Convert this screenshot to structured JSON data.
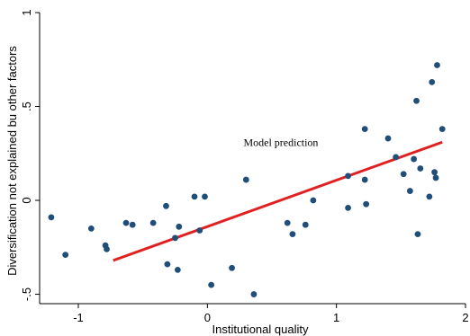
{
  "chart_data": {
    "type": "scatter",
    "title": "",
    "xlabel": "Institutional quality",
    "ylabel": "Diversification not explained bu other factors",
    "xlim": [
      -1.3,
      2.0
    ],
    "ylim": [
      -0.55,
      1.0
    ],
    "x_ticks": [
      {
        "value": -1,
        "label": "-1"
      },
      {
        "value": 0,
        "label": "0"
      },
      {
        "value": 1,
        "label": "1"
      },
      {
        "value": 2,
        "label": "2"
      }
    ],
    "y_ticks": [
      {
        "value": -0.5,
        "label": "-.5"
      },
      {
        "value": 0,
        "label": "0"
      },
      {
        "value": 0.5,
        "label": ".5"
      },
      {
        "value": 1,
        "label": "1"
      }
    ],
    "grid": false,
    "points_color": "#1f4e79",
    "line_color": "#e02020",
    "points": [
      [
        -1.21,
        -0.09
      ],
      [
        -1.1,
        -0.29
      ],
      [
        -0.9,
        -0.15
      ],
      [
        -0.79,
        -0.24
      ],
      [
        -0.78,
        -0.26
      ],
      [
        -0.63,
        -0.12
      ],
      [
        -0.58,
        -0.13
      ],
      [
        -0.42,
        -0.12
      ],
      [
        -0.32,
        -0.03
      ],
      [
        -0.31,
        -0.34
      ],
      [
        -0.25,
        -0.2
      ],
      [
        -0.23,
        -0.37
      ],
      [
        -0.22,
        -0.14
      ],
      [
        -0.1,
        0.02
      ],
      [
        -0.06,
        -0.16
      ],
      [
        -0.02,
        0.02
      ],
      [
        0.03,
        -0.45
      ],
      [
        0.19,
        -0.36
      ],
      [
        0.3,
        0.11
      ],
      [
        0.36,
        -0.5
      ],
      [
        0.62,
        -0.12
      ],
      [
        0.66,
        -0.18
      ],
      [
        0.76,
        -0.13
      ],
      [
        0.82,
        0.0
      ],
      [
        1.09,
        -0.04
      ],
      [
        1.09,
        0.13
      ],
      [
        1.22,
        0.38
      ],
      [
        1.22,
        0.11
      ],
      [
        1.23,
        -0.02
      ],
      [
        1.4,
        0.33
      ],
      [
        1.46,
        0.23
      ],
      [
        1.52,
        0.14
      ],
      [
        1.57,
        0.05
      ],
      [
        1.6,
        0.22
      ],
      [
        1.62,
        0.53
      ],
      [
        1.63,
        -0.18
      ],
      [
        1.65,
        0.17
      ],
      [
        1.72,
        0.02
      ],
      [
        1.74,
        0.63
      ],
      [
        1.76,
        0.15
      ],
      [
        1.77,
        0.12
      ],
      [
        1.78,
        0.72
      ],
      [
        1.82,
        0.38
      ]
    ],
    "fit_line": {
      "name": "Model prediction",
      "x": [
        -0.73,
        1.82
      ],
      "y": [
        -0.32,
        0.31
      ]
    },
    "annotations": [
      {
        "text": "Model prediction",
        "x": 0.28,
        "y": 0.29
      }
    ]
  }
}
